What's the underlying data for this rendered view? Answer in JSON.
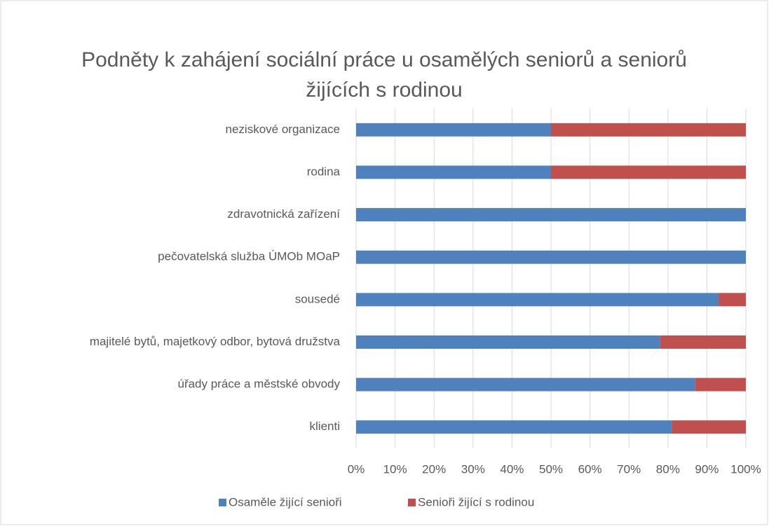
{
  "chart_data": {
    "type": "stacked_bar_horizontal",
    "title": "Podněty k zahájení sociální práce u osamělých seniorů a seniorů žijících s rodinou",
    "categories": [
      "neziskové organizace",
      "rodina",
      "zdravotnická zařízení",
      "pečovatelská služba ÚMOb MOaP",
      "sousedé",
      "majitelé bytů, majetkový odbor, bytová družstva",
      "úřady práce a městské obvody",
      "klienti"
    ],
    "series": [
      {
        "name": "Osaměle žijící senioři",
        "color": "#4f81bd",
        "values": [
          50,
          50,
          100,
          100,
          93,
          78,
          87,
          81
        ]
      },
      {
        "name": "Senioři žijící s rodinou",
        "color": "#c0504d",
        "values": [
          50,
          50,
          0,
          0,
          7,
          22,
          13,
          19
        ]
      }
    ],
    "xlim": [
      0,
      100
    ],
    "xticks": [
      {
        "value": 0,
        "label": "0%"
      },
      {
        "value": 10,
        "label": "10%"
      },
      {
        "value": 20,
        "label": "20%"
      },
      {
        "value": 30,
        "label": "30%"
      },
      {
        "value": 40,
        "label": "40%"
      },
      {
        "value": 50,
        "label": "50%"
      },
      {
        "value": 60,
        "label": "60%"
      },
      {
        "value": 70,
        "label": "70%"
      },
      {
        "value": 80,
        "label": "80%"
      },
      {
        "value": 90,
        "label": "90%"
      },
      {
        "value": 100,
        "label": "100%"
      }
    ],
    "grid": true,
    "legend": "bottom"
  }
}
